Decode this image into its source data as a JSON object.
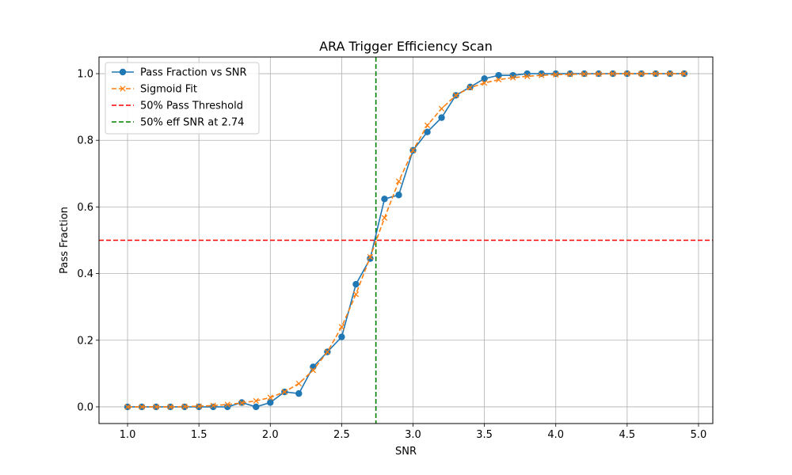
{
  "chart_data": {
    "type": "line",
    "title": "ARA Trigger Efficiency Scan",
    "xlabel": "SNR",
    "ylabel": "Pass Fraction",
    "xlim": [
      0.8,
      5.1
    ],
    "ylim": [
      -0.05,
      1.05
    ],
    "xticks": [
      "1.0",
      "1.5",
      "2.0",
      "2.5",
      "3.0",
      "3.5",
      "4.0",
      "4.5",
      "5.0"
    ],
    "xtick_values": [
      1.0,
      1.5,
      2.0,
      2.5,
      3.0,
      3.5,
      4.0,
      4.5,
      5.0
    ],
    "yticks": [
      "0.0",
      "0.2",
      "0.4",
      "0.6",
      "0.8",
      "1.0"
    ],
    "ytick_values": [
      0.0,
      0.2,
      0.4,
      0.6,
      0.8,
      1.0
    ],
    "grid": true,
    "legend_position": "top-left",
    "x": [
      1.0,
      1.1,
      1.2,
      1.3,
      1.4,
      1.5,
      1.6,
      1.7,
      1.8,
      1.9,
      2.0,
      2.1,
      2.2,
      2.3,
      2.4,
      2.5,
      2.6,
      2.7,
      2.8,
      2.9,
      3.0,
      3.1,
      3.2,
      3.3,
      3.4,
      3.5,
      3.6,
      3.7,
      3.8,
      3.9,
      4.0,
      4.1,
      4.2,
      4.3,
      4.4,
      4.5,
      4.6,
      4.7,
      4.8,
      4.9
    ],
    "series": [
      {
        "name": "Pass Fraction vs SNR",
        "color": "#1f77b4",
        "marker": "circle",
        "linestyle": "solid",
        "values": [
          0.0,
          0.0,
          0.0,
          0.0,
          0.0,
          0.0,
          0.0,
          0.0,
          0.013,
          0.0,
          0.013,
          0.045,
          0.04,
          0.12,
          0.165,
          0.21,
          0.368,
          0.445,
          0.624,
          0.636,
          0.77,
          0.825,
          0.868,
          0.935,
          0.96,
          0.985,
          0.995,
          0.995,
          1.0,
          1.0,
          1.0,
          1.0,
          1.0,
          1.0,
          1.0,
          1.0,
          1.0,
          1.0,
          1.0,
          1.0
        ]
      },
      {
        "name": "Sigmoid Fit",
        "color": "#ff7f0e",
        "marker": "x",
        "linestyle": "dashed",
        "values": [
          0.0,
          0.0,
          0.0,
          0.0,
          0.001,
          0.002,
          0.004,
          0.007,
          0.012,
          0.018,
          0.028,
          0.045,
          0.07,
          0.11,
          0.165,
          0.24,
          0.338,
          0.45,
          0.567,
          0.677,
          0.77,
          0.845,
          0.895,
          0.935,
          0.958,
          0.972,
          0.982,
          0.988,
          0.992,
          0.995,
          0.997,
          0.998,
          0.999,
          0.999,
          1.0,
          1.0,
          1.0,
          1.0,
          1.0,
          1.0
        ]
      }
    ],
    "reference_lines": [
      {
        "name": "50% Pass Threshold",
        "orientation": "horizontal",
        "value": 0.5,
        "color": "#ff0000"
      },
      {
        "name": "50% eff SNR at 2.74",
        "orientation": "vertical",
        "value": 2.74,
        "color": "#008000"
      }
    ],
    "legend_entries": [
      "Pass Fraction vs SNR",
      "Sigmoid Fit",
      "50% Pass Threshold",
      "50% eff SNR at 2.74"
    ]
  }
}
